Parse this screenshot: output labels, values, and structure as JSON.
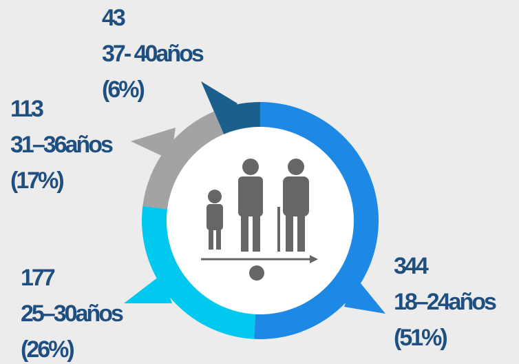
{
  "chart_data": {
    "type": "pie",
    "categories": [
      "18–24años",
      "25–30años",
      "31–36años",
      "37- 40años"
    ],
    "values": [
      344,
      177,
      113,
      43
    ],
    "percent_labels": [
      "(51%)",
      "(26%)",
      "(17%)",
      "(6%)"
    ],
    "colors": [
      "#1e88e5",
      "#00c8ee",
      "#a3a3a3",
      "#1b5f8c"
    ]
  }
}
